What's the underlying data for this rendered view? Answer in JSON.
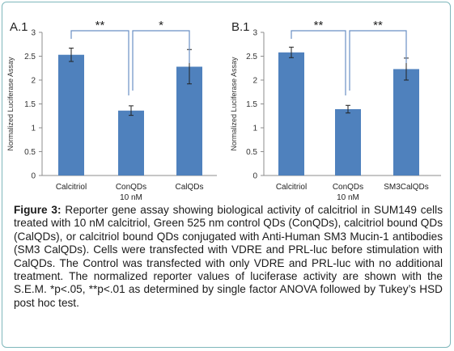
{
  "chart_data": [
    {
      "type": "bar",
      "panel_label": "A.1",
      "categories": [
        "Calcitriol",
        "ConQDs",
        "CalQDs"
      ],
      "values": [
        2.53,
        1.36,
        2.28
      ],
      "errors": [
        0.14,
        0.1,
        0.36
      ],
      "ylabel": "Normalized Luciferase Assay",
      "xlabel": "",
      "xsublabel": "10 nM",
      "ylim": [
        0,
        3
      ],
      "yticks": [
        "0",
        "0.5",
        "1",
        "1.5",
        "2",
        "2.5",
        "3"
      ],
      "bar_color": "#4f81bd",
      "grid": false,
      "significance": [
        {
          "from": 0,
          "to": 1,
          "label": "**"
        },
        {
          "from": 1,
          "to": 2,
          "label": "*"
        }
      ]
    },
    {
      "type": "bar",
      "panel_label": "B.1",
      "categories": [
        "Calcitriol",
        "ConQDs",
        "SM3CalQDs"
      ],
      "values": [
        2.58,
        1.39,
        2.23
      ],
      "errors": [
        0.11,
        0.08,
        0.23
      ],
      "ylabel": "Normalized Luciferase Assay",
      "xlabel": "",
      "xsublabel": "10 nM",
      "ylim": [
        0,
        3
      ],
      "yticks": [
        "0",
        "0.5",
        "1",
        "1.5",
        "2",
        "2.5",
        "3"
      ],
      "bar_color": "#4f81bd",
      "grid": false,
      "significance": [
        {
          "from": 0,
          "to": 1,
          "label": "**"
        },
        {
          "from": 1,
          "to": 2,
          "label": "**"
        }
      ]
    }
  ],
  "caption": {
    "lead": "Figure 3:",
    "text": " Reporter gene assay showing biological activity of calcitriol in SUM149 cells treated with 10 nM calcitriol, Green 525 nm control QDs (ConQDs), calcitriol bound QDs (CalQDs), or calcitriol bound QDs conjugated with Anti-Human SM3 Mucin-1 antibodies (SM3 CalQDs). Cells were transfected with VDRE and PRL-luc before stimulation with CalQDs. The Control was transfected with only VDRE and PRL-luc with no additional treatment. The normalized reporter values of luciferase activity are shown with the S.E.M. *p<.05, **p<.01 as determined by single factor ANOVA followed by Tukey’s HSD post hoc test."
  },
  "colors": {
    "frame": "#7fb7bb",
    "bracket": "#6a8fc4",
    "axis": "#8c8c8c"
  }
}
